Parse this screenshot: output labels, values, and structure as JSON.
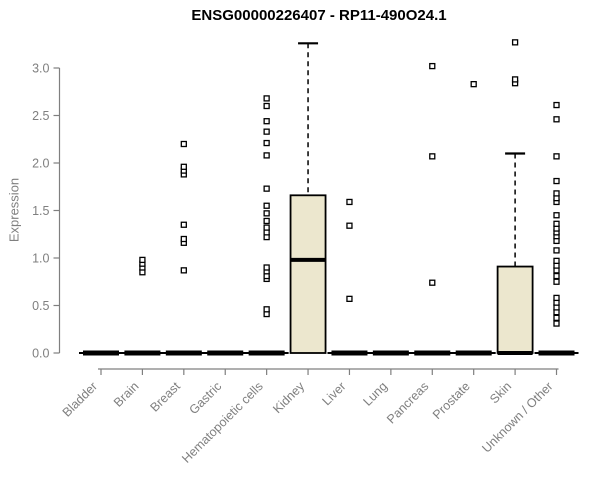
{
  "title": "ENSG00000226407 - RP11-490O24.1",
  "chart_data": {
    "type": "boxplot",
    "title": "ENSG00000226407 - RP11-490O24.1",
    "xlabel": "",
    "ylabel": "Expression",
    "ylim": [
      0.0,
      3.3
    ],
    "yticks": [
      0.0,
      0.5,
      1.0,
      1.5,
      2.0,
      2.5,
      3.0
    ],
    "grid": false,
    "legend": "none",
    "marker": "open-square",
    "colors": {
      "box_fill": "#ECE7CE",
      "box_stroke": "#000000",
      "axis": "#7f7f7f",
      "outlier": "#000000",
      "background": "#ffffff"
    },
    "categories": [
      "Bladder",
      "Brain",
      "Breast",
      "Gastric",
      "Hematopoietic cells",
      "Kidney",
      "Liver",
      "Lung",
      "Pancreas",
      "Prostate",
      "Skin",
      "Unknown / Other"
    ],
    "boxes": [
      {
        "category": "Bladder",
        "q1": 0,
        "median": 0,
        "q3": 0,
        "whisker_low": 0,
        "whisker_high": 0,
        "outliers": []
      },
      {
        "category": "Brain",
        "q1": 0,
        "median": 0,
        "q3": 0,
        "whisker_low": 0,
        "whisker_high": 0,
        "outliers": [
          0.85,
          0.9,
          0.94,
          0.98
        ]
      },
      {
        "category": "Breast",
        "q1": 0,
        "median": 0,
        "q3": 0,
        "whisker_low": 0,
        "whisker_high": 0,
        "outliers": [
          0.87,
          1.16,
          1.2,
          1.35,
          1.88,
          1.92,
          1.96,
          2.2
        ]
      },
      {
        "category": "Gastric",
        "q1": 0,
        "median": 0,
        "q3": 0,
        "whisker_low": 0,
        "whisker_high": 0,
        "outliers": []
      },
      {
        "category": "Hematopoietic cells",
        "q1": 0,
        "median": 0,
        "q3": 0,
        "whisker_low": 0,
        "whisker_high": 0,
        "outliers": [
          0.41,
          0.46,
          0.78,
          0.81,
          0.86,
          0.9,
          1.22,
          1.27,
          1.32,
          1.39,
          1.47,
          1.55,
          1.73,
          2.08,
          2.21,
          2.33,
          2.44,
          2.6,
          2.68
        ]
      },
      {
        "category": "Kidney",
        "q1": 0,
        "median": 0.98,
        "q3": 1.66,
        "whisker_low": 0,
        "whisker_high": 3.26,
        "outliers": []
      },
      {
        "category": "Liver",
        "q1": 0,
        "median": 0,
        "q3": 0,
        "whisker_low": 0,
        "whisker_high": 0,
        "outliers": [
          0.57,
          1.34,
          1.59
        ]
      },
      {
        "category": "Lung",
        "q1": 0,
        "median": 0,
        "q3": 0,
        "whisker_low": 0,
        "whisker_high": 0,
        "outliers": []
      },
      {
        "category": "Pancreas",
        "q1": 0,
        "median": 0,
        "q3": 0,
        "whisker_low": 0,
        "whisker_high": 0,
        "outliers": [
          0.74,
          2.07,
          3.02
        ]
      },
      {
        "category": "Prostate",
        "q1": 0,
        "median": 0,
        "q3": 0,
        "whisker_low": 0,
        "whisker_high": 0,
        "outliers": [
          2.83
        ]
      },
      {
        "category": "Skin",
        "q1": 0,
        "median": 0,
        "q3": 0.91,
        "whisker_low": 0,
        "whisker_high": 2.1,
        "outliers": [
          2.84,
          2.88,
          3.27
        ]
      },
      {
        "category": "Unknown / Other",
        "q1": 0,
        "median": 0,
        "q3": 0,
        "whisker_low": 0,
        "whisker_high": 0,
        "outliers": [
          0.31,
          0.37,
          0.43,
          0.48,
          0.53,
          0.58,
          0.75,
          0.81,
          0.87,
          0.92,
          0.97,
          1.08,
          1.18,
          1.23,
          1.27,
          1.31,
          1.36,
          1.45,
          1.59,
          1.63,
          1.68,
          1.81,
          2.07,
          2.46,
          2.61
        ]
      }
    ]
  }
}
